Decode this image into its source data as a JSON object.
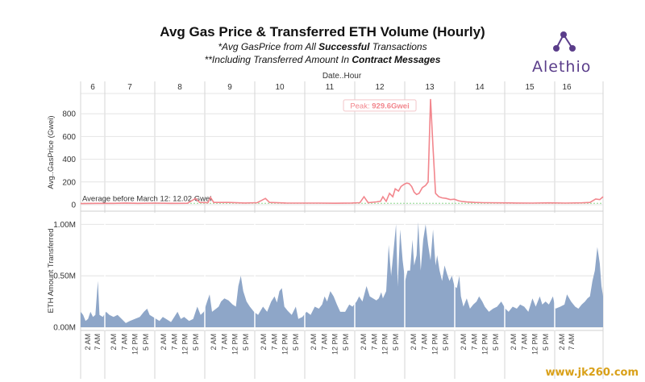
{
  "title": "Avg Gas Price & Transferred ETH Volume (Hourly)",
  "subtitle_1": {
    "prefix": "*Avg GasPrice from All ",
    "bold": "Successful",
    "suffix": " Transactions"
  },
  "subtitle_2": {
    "prefix": "**Including Transferred Amount In ",
    "bold": "Contract Messages"
  },
  "logo_text": "Alethio",
  "watermark": "www.jk260.com",
  "colors": {
    "gas_line": "#f2868d",
    "volume_area": "#8ea6c8",
    "avg_line": "#8dd98d",
    "grid": "#e4e4e4",
    "peak_label": "#f2868d"
  },
  "chart_data": [
    {
      "type": "line",
      "xlabel_top": "Date..Hour",
      "days": [
        "6",
        "7",
        "8",
        "9",
        "10",
        "11",
        "12",
        "13",
        "14",
        "15",
        "16"
      ],
      "ylabel": "Avg..GasPrice (Gwei)",
      "yticks": [
        "0",
        "200",
        "400",
        "600",
        "800"
      ],
      "ylim": [
        0,
        950
      ],
      "reference_line": {
        "label": "Average before March 12: 12.02 Gwei",
        "value": 12.02
      },
      "annotation": {
        "prefix": "Peak: ",
        "value_label": "929.6Gwei",
        "day": "12",
        "hour": 13,
        "value": 929.6
      },
      "series": [
        {
          "keypoints": [
            [
              0,
              10
            ],
            [
              20,
              12
            ],
            [
              40,
              12
            ],
            [
              55,
              15
            ],
            [
              70,
              12
            ],
            [
              90,
              14
            ],
            [
              110,
              12
            ],
            [
              130,
              13
            ],
            [
              140,
              55
            ],
            [
              145,
              20
            ],
            [
              155,
              18
            ],
            [
              158,
              65
            ],
            [
              162,
              20
            ],
            [
              180,
              20
            ],
            [
              200,
              15
            ],
            [
              215,
              18
            ],
            [
              225,
              55
            ],
            [
              230,
              20
            ],
            [
              250,
              15
            ],
            [
              270,
              14
            ],
            [
              290,
              14
            ],
            [
              310,
              13
            ],
            [
              330,
              15
            ],
            [
              340,
              18
            ],
            [
              345,
              70
            ],
            [
              350,
              18
            ],
            [
              360,
              25
            ],
            [
              365,
              30
            ],
            [
              368,
              70
            ],
            [
              372,
              30
            ],
            [
              376,
              100
            ],
            [
              380,
              70
            ],
            [
              383,
              140
            ],
            [
              387,
              120
            ],
            [
              390,
              160
            ],
            [
              394,
              180
            ],
            [
              397,
              190
            ],
            [
              400,
              185
            ],
            [
              403,
              160
            ],
            [
              406,
              110
            ],
            [
              409,
              90
            ],
            [
              412,
              100
            ],
            [
              416,
              150
            ],
            [
              420,
              170
            ],
            [
              423,
              200
            ],
            [
              426,
              929.6
            ],
            [
              429,
              500
            ],
            [
              432,
              100
            ],
            [
              436,
              70
            ],
            [
              440,
              60
            ],
            [
              445,
              55
            ],
            [
              450,
              45
            ],
            [
              455,
              48
            ],
            [
              460,
              35
            ],
            [
              465,
              28
            ],
            [
              470,
              24
            ],
            [
              480,
              20
            ],
            [
              490,
              18
            ],
            [
              510,
              16
            ],
            [
              530,
              15
            ],
            [
              550,
              14
            ],
            [
              570,
              16
            ],
            [
              590,
              14
            ],
            [
              610,
              16
            ],
            [
              620,
              20
            ],
            [
              627,
              50
            ],
            [
              632,
              45
            ],
            [
              636,
              70
            ]
          ]
        }
      ]
    },
    {
      "type": "area",
      "ylabel": "ETH Amount Transferred",
      "yticks": [
        "0.00M",
        "0.50M",
        "1.00M"
      ],
      "ylim": [
        0,
        1.05
      ],
      "x_hour_ticks": [
        "2 AM",
        "7 AM",
        "12 PM",
        "5 PM"
      ],
      "series": [
        {
          "keypoints": [
            [
              0,
              0.15
            ],
            [
              3,
              0.12
            ],
            [
              6,
              0.06
            ],
            [
              9,
              0.08
            ],
            [
              12,
              0.15
            ],
            [
              15,
              0.1
            ],
            [
              18,
              0.12
            ],
            [
              21,
              0.45
            ],
            [
              23,
              0.12
            ],
            [
              27,
              0.1
            ],
            [
              31,
              0.15
            ],
            [
              35,
              0.12
            ],
            [
              40,
              0.1
            ],
            [
              45,
              0.12
            ],
            [
              50,
              0.08
            ],
            [
              55,
              0.04
            ],
            [
              60,
              0.06
            ],
            [
              66,
              0.08
            ],
            [
              72,
              0.1
            ],
            [
              77,
              0.15
            ],
            [
              81,
              0.18
            ],
            [
              84,
              0.12
            ],
            [
              88,
              0.1
            ],
            [
              92,
              0.08
            ],
            [
              96,
              0.06
            ],
            [
              100,
              0.1
            ],
            [
              104,
              0.08
            ],
            [
              110,
              0.05
            ],
            [
              114,
              0.1
            ],
            [
              118,
              0.15
            ],
            [
              122,
              0.08
            ],
            [
              126,
              0.1
            ],
            [
              132,
              0.06
            ],
            [
              137,
              0.08
            ],
            [
              142,
              0.2
            ],
            [
              146,
              0.12
            ],
            [
              150,
              0.15
            ],
            [
              154,
              0.25
            ],
            [
              157,
              0.32
            ],
            [
              160,
              0.15
            ],
            [
              165,
              0.18
            ],
            [
              168,
              0.2
            ],
            [
              171,
              0.25
            ],
            [
              175,
              0.28
            ],
            [
              180,
              0.26
            ],
            [
              185,
              0.22
            ],
            [
              189,
              0.2
            ],
            [
              192,
              0.4
            ],
            [
              195,
              0.5
            ],
            [
              198,
              0.35
            ],
            [
              202,
              0.25
            ],
            [
              206,
              0.2
            ],
            [
              211,
              0.15
            ],
            [
              216,
              0.12
            ],
            [
              222,
              0.2
            ],
            [
              227,
              0.15
            ],
            [
              232,
              0.25
            ],
            [
              236,
              0.3
            ],
            [
              239,
              0.24
            ],
            [
              242,
              0.35
            ],
            [
              245,
              0.38
            ],
            [
              248,
              0.2
            ],
            [
              252,
              0.16
            ],
            [
              257,
              0.12
            ],
            [
              262,
              0.2
            ],
            [
              265,
              0.08
            ],
            [
              270,
              0.1
            ],
            [
              275,
              0.15
            ],
            [
              280,
              0.12
            ],
            [
              285,
              0.2
            ],
            [
              290,
              0.18
            ],
            [
              294,
              0.22
            ],
            [
              297,
              0.3
            ],
            [
              300,
              0.25
            ],
            [
              304,
              0.35
            ],
            [
              308,
              0.3
            ],
            [
              312,
              0.22
            ],
            [
              316,
              0.15
            ],
            [
              322,
              0.15
            ],
            [
              327,
              0.22
            ],
            [
              331,
              0.2
            ],
            [
              336,
              0.25
            ],
            [
              339,
              0.3
            ],
            [
              343,
              0.25
            ],
            [
              348,
              0.4
            ],
            [
              352,
              0.3
            ],
            [
              356,
              0.28
            ],
            [
              360,
              0.26
            ],
            [
              363,
              0.28
            ],
            [
              366,
              0.34
            ],
            [
              368,
              0.28
            ],
            [
              372,
              0.35
            ],
            [
              375,
              0.8
            ],
            [
              378,
              0.5
            ],
            [
              381,
              0.75
            ],
            [
              384,
              1.0
            ],
            [
              386,
              0.4
            ],
            [
              389,
              0.95
            ],
            [
              392,
              0.65
            ],
            [
              395,
              0.45
            ],
            [
              398,
              0.55
            ],
            [
              401,
              0.55
            ],
            [
              404,
              0.85
            ],
            [
              406,
              0.6
            ],
            [
              409,
              0.7
            ],
            [
              411,
              1.02
            ],
            [
              414,
              0.55
            ],
            [
              417,
              0.85
            ],
            [
              420,
              1.0
            ],
            [
              423,
              0.8
            ],
            [
              426,
              0.65
            ],
            [
              429,
              0.95
            ],
            [
              432,
              0.6
            ],
            [
              434,
              0.7
            ],
            [
              437,
              0.55
            ],
            [
              440,
              0.45
            ],
            [
              443,
              0.6
            ],
            [
              446,
              0.52
            ],
            [
              449,
              0.45
            ],
            [
              452,
              0.5
            ],
            [
              455,
              0.4
            ],
            [
              458,
              0.38
            ],
            [
              461,
              0.5
            ],
            [
              463,
              0.3
            ],
            [
              466,
              0.2
            ],
            [
              470,
              0.28
            ],
            [
              474,
              0.18
            ],
            [
              478,
              0.22
            ],
            [
              482,
              0.25
            ],
            [
              485,
              0.3
            ],
            [
              489,
              0.25
            ],
            [
              492,
              0.2
            ],
            [
              497,
              0.15
            ],
            [
              502,
              0.18
            ],
            [
              507,
              0.2
            ],
            [
              512,
              0.25
            ],
            [
              517,
              0.18
            ],
            [
              521,
              0.15
            ],
            [
              526,
              0.2
            ],
            [
              531,
              0.18
            ],
            [
              535,
              0.22
            ],
            [
              540,
              0.2
            ],
            [
              545,
              0.15
            ],
            [
              550,
              0.28
            ],
            [
              554,
              0.2
            ],
            [
              559,
              0.3
            ],
            [
              562,
              0.22
            ],
            [
              566,
              0.25
            ],
            [
              570,
              0.22
            ],
            [
              575,
              0.3
            ],
            [
              578,
              0.18
            ],
            [
              584,
              0.2
            ],
            [
              589,
              0.22
            ],
            [
              592,
              0.32
            ],
            [
              597,
              0.25
            ],
            [
              602,
              0.2
            ],
            [
              606,
              0.18
            ],
            [
              610,
              0.22
            ],
            [
              614,
              0.25
            ],
            [
              617,
              0.28
            ],
            [
              620,
              0.3
            ],
            [
              623,
              0.45
            ],
            [
              626,
              0.55
            ],
            [
              629,
              0.78
            ],
            [
              632,
              0.62
            ],
            [
              634,
              0.4
            ],
            [
              636,
              0.3
            ]
          ]
        }
      ]
    }
  ]
}
